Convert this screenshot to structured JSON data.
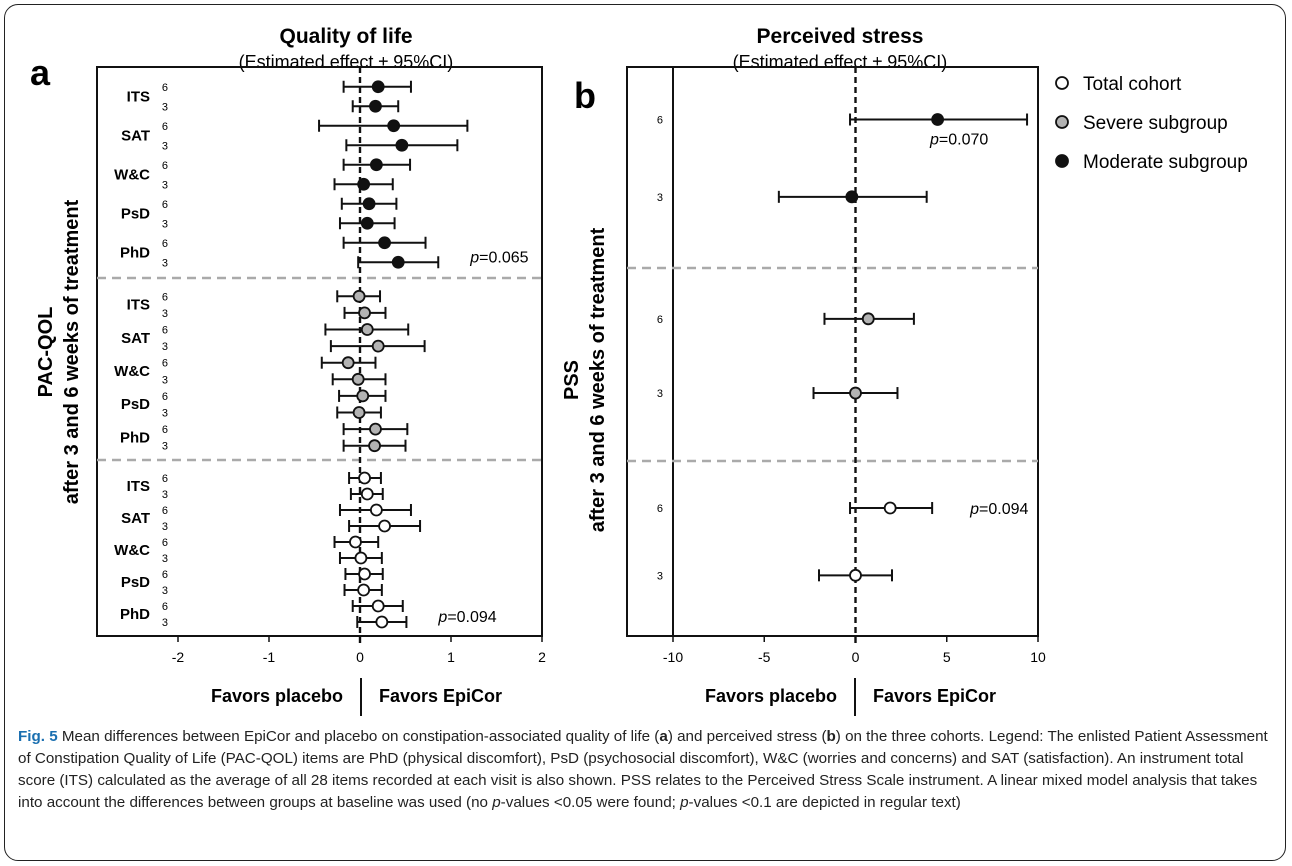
{
  "legend": [
    {
      "label": "Total cohort",
      "fill": "#ffffff"
    },
    {
      "label": "Severe subgroup",
      "fill": "#b3b3b3"
    },
    {
      "label": "Moderate subgroup",
      "fill": "#111111"
    }
  ],
  "caption": {
    "fig_label": "Fig. 5",
    "text1": " Mean differences between EpiCor and placebo on constipation-associated quality of life (",
    "a": "a",
    "text2": ") and perceived stress (",
    "b": "b",
    "text3": ") on the three cohorts. Legend: The enlisted Patient Assessment of Constipation Quality of Life (PAC-QOL) items are PhD (physical discomfort), PsD (psychosocial discomfort), W&C (worries and concerns) and SAT (satisfaction). An instrument total score (ITS) calculated as the average of all 28 items recorded at each visit is also shown. PSS relates to the Perceived Stress Scale instrument. A linear mixed model analysis that takes into account the differences between groups at baseline was used (no ",
    "p1": "p",
    "text4": "-values <0.05 were found; ",
    "p2": "p",
    "text5": "-values <0.1 are depicted in regular text)"
  },
  "chart_data": [
    {
      "type": "scatter",
      "panel": "a",
      "title": "Quality of life",
      "subtitle": "(Estimated effect ± 95%CI)",
      "ylabel": [
        "PAC-QOL",
        "after 3 and 6 weeks of treatment"
      ],
      "xlim": [
        -2,
        2
      ],
      "xticks": [
        -2,
        -1,
        0,
        1,
        2
      ],
      "favors": [
        "Favors placebo",
        "Favors EpiCor"
      ],
      "reference_line": 0,
      "groups": [
        {
          "name": "Moderate subgroup",
          "fill": "#111111",
          "rows": [
            {
              "item": "ITS",
              "week": "6",
              "value": 0.2,
              "lo": -0.18,
              "hi": 0.56
            },
            {
              "item": "ITS",
              "week": "3",
              "value": 0.17,
              "lo": -0.08,
              "hi": 0.42
            },
            {
              "item": "SAT",
              "week": "6",
              "value": 0.37,
              "lo": -0.45,
              "hi": 1.18
            },
            {
              "item": "SAT",
              "week": "3",
              "value": 0.46,
              "lo": -0.15,
              "hi": 1.07
            },
            {
              "item": "W&C",
              "week": "6",
              "value": 0.18,
              "lo": -0.18,
              "hi": 0.55
            },
            {
              "item": "W&C",
              "week": "3",
              "value": 0.04,
              "lo": -0.28,
              "hi": 0.36
            },
            {
              "item": "PsD",
              "week": "6",
              "value": 0.1,
              "lo": -0.2,
              "hi": 0.4
            },
            {
              "item": "PsD",
              "week": "3",
              "value": 0.08,
              "lo": -0.22,
              "hi": 0.38
            },
            {
              "item": "PhD",
              "week": "6",
              "value": 0.27,
              "lo": -0.18,
              "hi": 0.72
            },
            {
              "item": "PhD",
              "week": "3",
              "value": 0.42,
              "lo": -0.02,
              "hi": 0.86,
              "p": "p=0.065"
            }
          ]
        },
        {
          "name": "Severe subgroup",
          "fill": "#b3b3b3",
          "rows": [
            {
              "item": "ITS",
              "week": "6",
              "value": -0.01,
              "lo": -0.25,
              "hi": 0.22
            },
            {
              "item": "ITS",
              "week": "3",
              "value": 0.05,
              "lo": -0.17,
              "hi": 0.28
            },
            {
              "item": "SAT",
              "week": "6",
              "value": 0.08,
              "lo": -0.38,
              "hi": 0.53
            },
            {
              "item": "SAT",
              "week": "3",
              "value": 0.2,
              "lo": -0.32,
              "hi": 0.71
            },
            {
              "item": "W&C",
              "week": "6",
              "value": -0.13,
              "lo": -0.42,
              "hi": 0.17
            },
            {
              "item": "W&C",
              "week": "3",
              "value": -0.02,
              "lo": -0.3,
              "hi": 0.28
            },
            {
              "item": "PsD",
              "week": "6",
              "value": 0.03,
              "lo": -0.23,
              "hi": 0.28
            },
            {
              "item": "PsD",
              "week": "3",
              "value": -0.01,
              "lo": -0.25,
              "hi": 0.23
            },
            {
              "item": "PhD",
              "week": "6",
              "value": 0.17,
              "lo": -0.18,
              "hi": 0.52
            },
            {
              "item": "PhD",
              "week": "3",
              "value": 0.16,
              "lo": -0.18,
              "hi": 0.5
            }
          ]
        },
        {
          "name": "Total cohort",
          "fill": "#ffffff",
          "rows": [
            {
              "item": "ITS",
              "week": "6",
              "value": 0.05,
              "lo": -0.12,
              "hi": 0.23
            },
            {
              "item": "ITS",
              "week": "3",
              "value": 0.08,
              "lo": -0.1,
              "hi": 0.25
            },
            {
              "item": "SAT",
              "week": "6",
              "value": 0.18,
              "lo": -0.22,
              "hi": 0.56
            },
            {
              "item": "SAT",
              "week": "3",
              "value": 0.27,
              "lo": -0.12,
              "hi": 0.66
            },
            {
              "item": "W&C",
              "week": "6",
              "value": -0.05,
              "lo": -0.28,
              "hi": 0.2
            },
            {
              "item": "W&C",
              "week": "3",
              "value": 0.01,
              "lo": -0.22,
              "hi": 0.24
            },
            {
              "item": "PsD",
              "week": "6",
              "value": 0.05,
              "lo": -0.16,
              "hi": 0.25
            },
            {
              "item": "PsD",
              "week": "3",
              "value": 0.04,
              "lo": -0.17,
              "hi": 0.24
            },
            {
              "item": "PhD",
              "week": "6",
              "value": 0.2,
              "lo": -0.08,
              "hi": 0.47
            },
            {
              "item": "PhD",
              "week": "3",
              "value": 0.24,
              "lo": -0.03,
              "hi": 0.51,
              "p": "p=0.094"
            }
          ]
        }
      ]
    },
    {
      "type": "scatter",
      "panel": "b",
      "title": "Perceived stress",
      "subtitle": "(Estimated effect ± 95%CI)",
      "ylabel": [
        "PSS",
        "after 3 and 6 weeks of treatment"
      ],
      "xlim": [
        -10,
        10
      ],
      "xticks": [
        -10,
        -5,
        0,
        5,
        10
      ],
      "favors": [
        "Favors placebo",
        "Favors EpiCor"
      ],
      "reference_line": 0,
      "groups": [
        {
          "name": "Moderate subgroup",
          "fill": "#111111",
          "rows": [
            {
              "week": "6",
              "value": 4.5,
              "lo": -0.3,
              "hi": 9.4,
              "p": "p=0.070"
            },
            {
              "week": "3",
              "value": -0.2,
              "lo": -4.2,
              "hi": 3.9
            }
          ]
        },
        {
          "name": "Severe subgroup",
          "fill": "#b3b3b3",
          "rows": [
            {
              "week": "6",
              "value": 0.7,
              "lo": -1.7,
              "hi": 3.2
            },
            {
              "week": "3",
              "value": 0.0,
              "lo": -2.3,
              "hi": 2.3
            }
          ]
        },
        {
          "name": "Total cohort",
          "fill": "#ffffff",
          "rows": [
            {
              "week": "6",
              "value": 1.9,
              "lo": -0.3,
              "hi": 4.2,
              "p": "p=0.094"
            },
            {
              "week": "3",
              "value": 0.0,
              "lo": -2.0,
              "hi": 2.0
            }
          ]
        }
      ]
    }
  ]
}
